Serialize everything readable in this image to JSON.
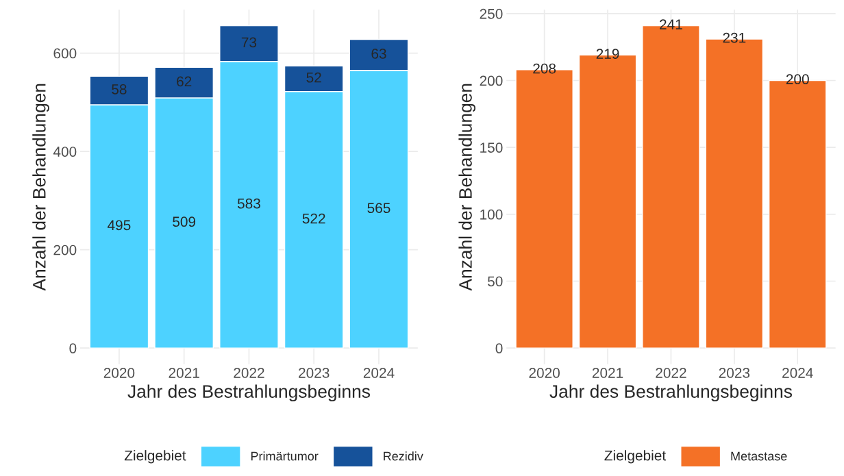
{
  "chart_data": [
    {
      "type": "bar",
      "stacked": true,
      "categories": [
        "2020",
        "2021",
        "2022",
        "2023",
        "2024"
      ],
      "xlabel": "Jahr des Bestrahlungsbeginns",
      "ylabel": "Anzahl der Behandlungen",
      "legend_title": "Zielgebiet",
      "series": [
        {
          "name": "Primärtumor",
          "color": "#4dd2ff",
          "values": [
            495,
            509,
            583,
            522,
            565
          ]
        },
        {
          "name": "Rezidiv",
          "color": "#16529a",
          "values": [
            58,
            62,
            73,
            52,
            63
          ]
        }
      ],
      "ylim": [
        -32.8,
        688.8
      ],
      "yticks": [
        0,
        200,
        400,
        600
      ],
      "grid": true,
      "legend": "bottom",
      "data_labels": true
    },
    {
      "type": "bar",
      "categories": [
        "2020",
        "2021",
        "2022",
        "2023",
        "2024"
      ],
      "xlabel": "Jahr des Bestrahlungsbeginns",
      "ylabel": "Anzahl der Behandlungen",
      "legend_title": "Zielgebiet",
      "series": [
        {
          "name": "Metastase",
          "color": "#f47126",
          "values": [
            208,
            219,
            241,
            231,
            200
          ]
        }
      ],
      "ylim": [
        -12.05,
        253.05
      ],
      "yticks": [
        0,
        50,
        100,
        150,
        200,
        250
      ],
      "grid": true,
      "legend": "bottom",
      "data_labels": true
    }
  ]
}
